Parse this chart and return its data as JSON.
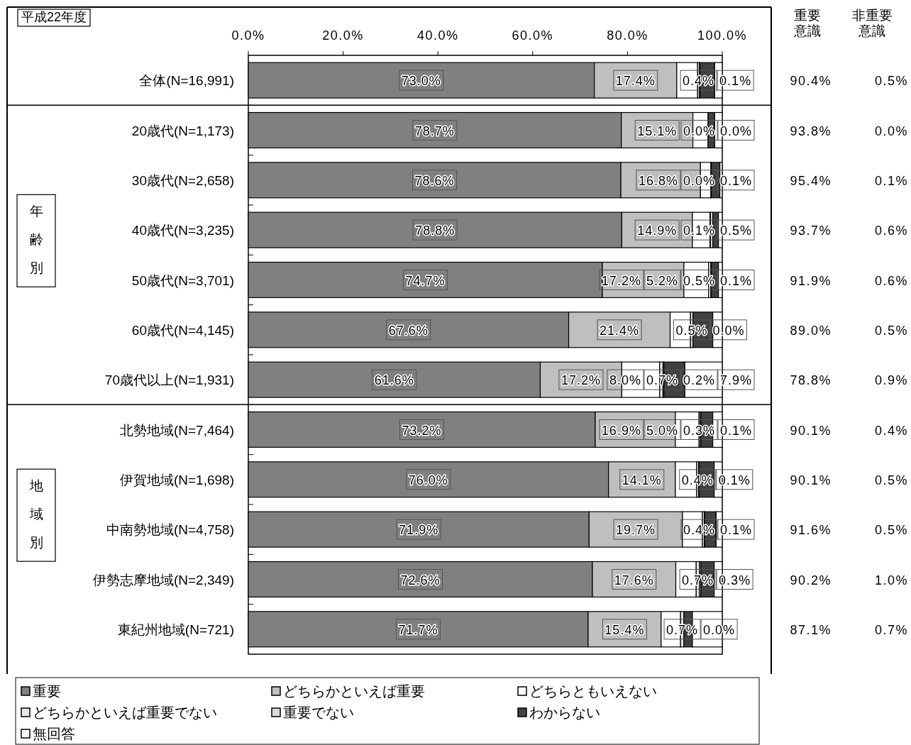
{
  "chart_data": [
    {
      "type": "bar",
      "orientation": "horizontal",
      "stacked": true,
      "title": "平成22年度",
      "legend": "bottom",
      "grid": false,
      "categories": [
        "全体(N=16,991)",
        "20歳代(N=1,173)",
        "30歳代(N=2,658)",
        "40歳代(N=3,235)",
        "50歳代(N=3,701)",
        "60歳代(N=4,145)",
        "70歳代以上(N=1,931)",
        "北勢地域(N=7,464)",
        "伊賀地域(N=1,698)",
        "中南勢地域(N=4,758)",
        "伊勢志摩地域(N=2,349)",
        "東紀州地域(N=721)"
      ],
      "xlim": [
        0,
        100
      ],
      "xticks": [
        {
          "value": 0,
          "label": "0.0%"
        },
        {
          "value": 20,
          "label": "20.0%"
        },
        {
          "value": 40,
          "label": "40.0%"
        },
        {
          "value": 60,
          "label": "60.0%"
        },
        {
          "value": 80,
          "label": "80.0%"
        },
        {
          "value": 100,
          "label": "100.0%"
        }
      ],
      "series": [
        {
          "name": "重要",
          "color": "#808080",
          "values": [
            73.0,
            78.7,
            78.6,
            78.8,
            74.7,
            67.6,
            61.6,
            73.2,
            76.0,
            71.9,
            72.6,
            71.7
          ],
          "value_labels": [
            "73.0%",
            "78.7%",
            "78.6%",
            "78.8%",
            "74.7%",
            "67.6%",
            "61.6%",
            "73.2%",
            "76.0%",
            "71.9%",
            "72.6%",
            "71.7%"
          ]
        },
        {
          "name": "どちらかといえば重要",
          "color": "#bfbfbf",
          "values": [
            17.4,
            15.1,
            16.8,
            14.9,
            17.2,
            21.4,
            17.2,
            16.9,
            14.1,
            19.7,
            17.6,
            15.4
          ],
          "value_labels": [
            "17.4%",
            "15.1%",
            "16.8%",
            "14.9%",
            "17.2%",
            "21.4%",
            "17.2%",
            "16.9%",
            "14.1%",
            "19.7%",
            "17.6%",
            "15.4%"
          ]
        },
        {
          "name": "どちらともいえない",
          "color": "#ffffff",
          "values": [
            4.4,
            3.2,
            2.2,
            3.7,
            5.2,
            4.3,
            8.0,
            5.0,
            4.5,
            4.2,
            4.3,
            4.1
          ],
          "value_labels": [
            null,
            null,
            null,
            null,
            "5.2%",
            null,
            "8.0%",
            "5.0%",
            null,
            null,
            null,
            null
          ]
        },
        {
          "name": "どちらかといえば重要でない",
          "color": "#e6e6e6",
          "values": [
            0.4,
            0.0,
            0.0,
            0.1,
            0.5,
            0.5,
            0.7,
            0.3,
            0.4,
            0.4,
            0.7,
            0.7
          ],
          "value_labels": [
            "0.4%",
            "0.0%",
            "0.0%",
            "0.1%",
            "0.5%",
            "0.5%",
            "0.7%",
            "0.3%",
            "0.4%",
            "0.4%",
            "0.7%",
            "0.7%"
          ]
        },
        {
          "name": "重要でない",
          "color": "#d9d9d9",
          "values": [
            0.1,
            0.0,
            0.1,
            0.5,
            0.1,
            0.0,
            0.2,
            0.1,
            0.1,
            0.1,
            0.3,
            0.0
          ],
          "value_labels": [
            "0.1%",
            "0.0%",
            "0.1%",
            "0.5%",
            "0.1%",
            "0.0%",
            "0.2%",
            "0.1%",
            "0.1%",
            "0.1%",
            "0.3%",
            "0.0%"
          ]
        },
        {
          "name": "わからない",
          "color": "#404040",
          "values": [
            3.1,
            1.4,
            1.8,
            1.2,
            1.5,
            4.2,
            4.4,
            2.5,
            3.2,
            2.4,
            2.8,
            1.8
          ],
          "value_labels": [
            null,
            null,
            null,
            null,
            null,
            null,
            null,
            null,
            null,
            null,
            null,
            null
          ]
        },
        {
          "name": "無回答",
          "color": "#ffffff",
          "values": [
            1.6,
            1.6,
            0.5,
            0.8,
            0.8,
            2.0,
            7.9,
            2.0,
            1.7,
            1.3,
            1.7,
            6.3
          ],
          "value_labels": [
            null,
            null,
            null,
            null,
            null,
            null,
            "7.9%",
            null,
            null,
            null,
            null,
            null
          ]
        }
      ],
      "annotations": [
        "年齢別",
        "地域別"
      ]
    },
    {
      "type": "other",
      "annotations": [
        "重要意識",
        "非重要意識",
        "90.4%",
        "0.5%",
        "93.8%",
        "0.0%",
        "95.4%",
        "0.1%",
        "93.7%",
        "0.6%",
        "91.9%",
        "0.6%",
        "89.0%",
        "0.5%",
        "78.8%",
        "0.9%",
        "90.1%",
        "0.4%",
        "90.1%",
        "0.5%",
        "91.6%",
        "0.5%",
        "90.2%",
        "1.0%",
        "87.1%",
        "0.7%"
      ]
    }
  ]
}
